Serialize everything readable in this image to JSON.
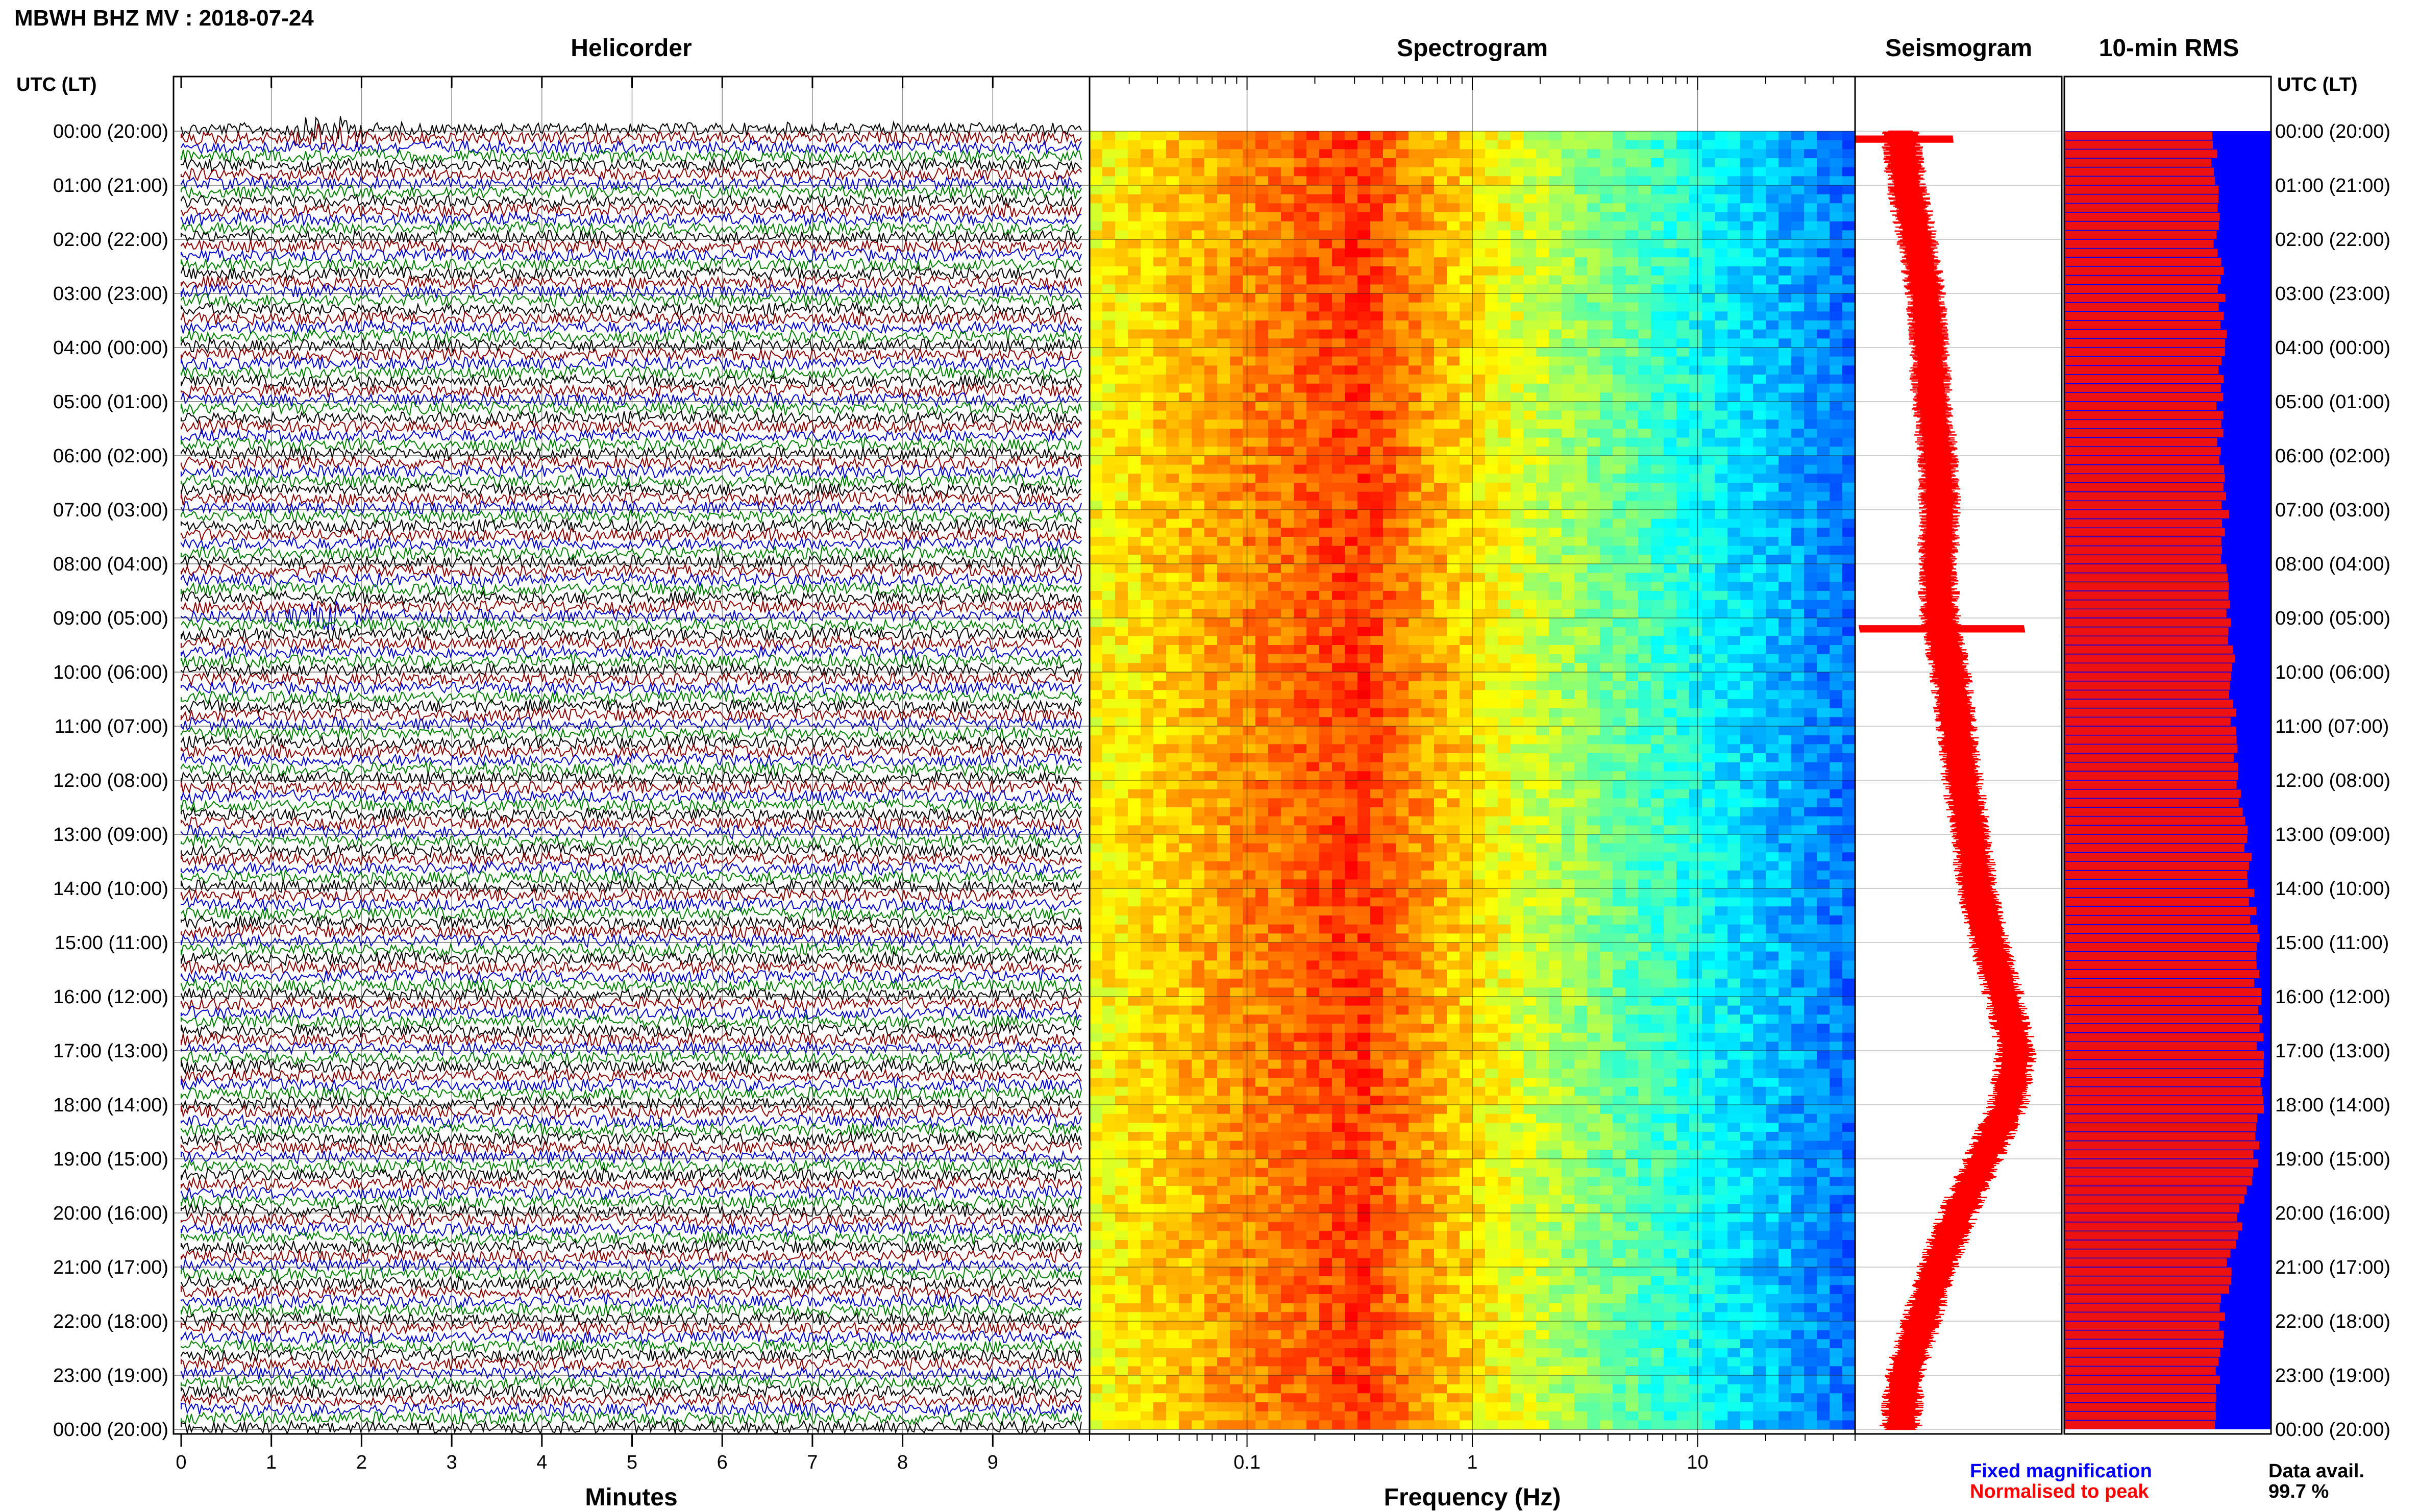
{
  "title": "MBWH BHZ MV : 2018-07-24",
  "time_label": "UTC (LT)",
  "panels": {
    "helicorder": "Helicorder",
    "spectrogram": "Spectrogram",
    "seismogram": "Seismogram",
    "rms": "10-min RMS"
  },
  "xlabels": {
    "helicorder": "Minutes",
    "spectrogram": "Frequency (Hz)"
  },
  "legend": {
    "fixed": "Fixed magnification",
    "normalised": "Normalised to peak",
    "fixed_color": "#0000ff",
    "normalised_color": "#ff0000",
    "data_label": "Data avail.",
    "data_value": "99.7 %"
  },
  "colors": {
    "trace_cycle": [
      "#000000",
      "#8b0000",
      "#0000cc",
      "#008000"
    ],
    "seismogram": "#ff0000",
    "rms_fixed": "#0000ff",
    "rms_normalised": "#ee1111"
  },
  "chart_data": [
    {
      "type": "line",
      "title": "Helicorder",
      "xlabel": "Minutes",
      "x_ticks": [
        0,
        1,
        2,
        3,
        4,
        5,
        6,
        7,
        8,
        9
      ],
      "xlim": [
        0,
        10
      ],
      "y_ticks": [
        "00:00 (20:00)",
        "01:00 (21:00)",
        "02:00 (22:00)",
        "03:00 (23:00)",
        "04:00 (00:00)",
        "05:00 (01:00)",
        "06:00 (02:00)",
        "07:00 (03:00)",
        "08:00 (04:00)",
        "09:00 (05:00)",
        "10:00 (06:00)",
        "11:00 (07:00)",
        "12:00 (08:00)",
        "13:00 (09:00)",
        "14:00 (10:00)",
        "15:00 (11:00)",
        "16:00 (12:00)",
        "17:00 (13:00)",
        "18:00 (14:00)",
        "19:00 (15:00)",
        "20:00 (16:00)",
        "21:00 (17:00)",
        "22:00 (18:00)",
        "23:00 (19:00)",
        "00:00 (20:00)"
      ],
      "lines_per_hour": 6,
      "minutes_per_line": 10,
      "events": [
        {
          "hour": 0.05,
          "minute": 1.6
        },
        {
          "hour": 9.0,
          "minute": 1.6
        }
      ]
    },
    {
      "type": "heatmap",
      "title": "Spectrogram",
      "xlabel": "Frequency (Hz)",
      "x_scale": "log",
      "xlim": [
        0.02,
        50
      ],
      "x_ticks": [
        0.1,
        1,
        10
      ],
      "hours": 24,
      "peak_frequency_hz": 0.3,
      "colormap": "jet"
    },
    {
      "type": "line",
      "title": "Seismogram",
      "hours": 24,
      "hourly_offset": [
        0.22,
        0.25,
        0.3,
        0.34,
        0.36,
        0.37,
        0.4,
        0.41,
        0.4,
        0.41,
        0.46,
        0.49,
        0.52,
        0.56,
        0.59,
        0.65,
        0.72,
        0.78,
        0.74,
        0.62,
        0.5,
        0.4,
        0.32,
        0.24,
        0.22
      ],
      "spikes": [
        {
          "hour": 0.15,
          "amplitude": 0.25
        },
        {
          "hour": 9.2,
          "amplitude": 0.4
        }
      ]
    },
    {
      "type": "bar",
      "title": "10-min RMS",
      "series": [
        {
          "name": "Fixed magnification",
          "value": 1.0
        },
        {
          "name": "Normalised to peak",
          "hourly_level": [
            0.72,
            0.73,
            0.74,
            0.76,
            0.77,
            0.75,
            0.76,
            0.78,
            0.77,
            0.79,
            0.81,
            0.82,
            0.85,
            0.88,
            0.9,
            0.93,
            0.94,
            0.95,
            0.96,
            0.93,
            0.86,
            0.8,
            0.76,
            0.74,
            0.72
          ]
        }
      ],
      "data_availability_pct": 99.7
    }
  ]
}
